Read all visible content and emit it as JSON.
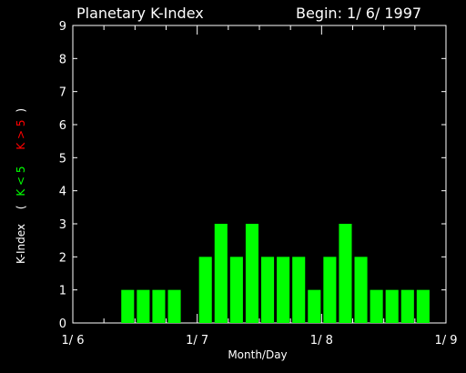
{
  "chart_data": {
    "type": "bar",
    "title": "Planetary K-Index",
    "begin_label": "Begin: 1/ 6/ 1997",
    "xlabel": "Month/Day",
    "ylabel": {
      "prefix": "K-Index",
      "open": "(",
      "green_part": "K < 5",
      "red_part": "K > 5",
      "close": ")"
    },
    "ylim": [
      0,
      9
    ],
    "yticks": [
      "0",
      "1",
      "2",
      "3",
      "4",
      "5",
      "6",
      "7",
      "8",
      "9"
    ],
    "xticks": [
      {
        "label": "1/ 6",
        "day": 0
      },
      {
        "label": "1/ 7",
        "day": 1
      },
      {
        "label": "1/ 8",
        "day": 2
      },
      {
        "label": "1/ 9",
        "day": 3
      }
    ],
    "bar_interval_hours": 3,
    "values": [
      0,
      0,
      0,
      1,
      1,
      1,
      1,
      0,
      2,
      3,
      2,
      3,
      2,
      2,
      2,
      1,
      2,
      3,
      2,
      1,
      1,
      1,
      1,
      0
    ],
    "colors": {
      "background": "#000000",
      "axes": "#ffffff",
      "text": "#ffffff",
      "bar_low": "#00ff00",
      "bar_high": "#ff0000"
    },
    "threshold": 5
  }
}
